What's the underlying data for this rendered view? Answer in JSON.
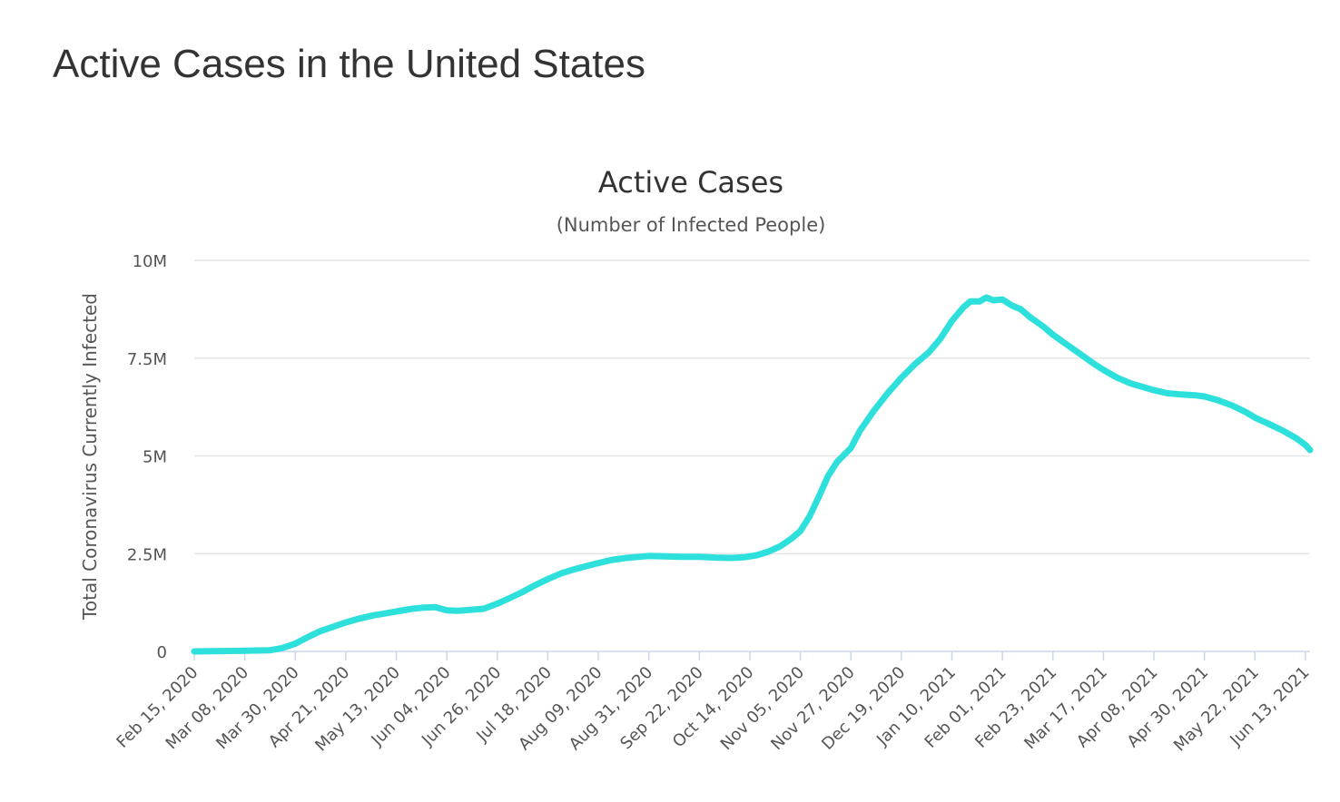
{
  "page": {
    "title": "Active Cases in the United States"
  },
  "colors": {
    "series": "#2ee0dc",
    "grid": "#e6e6e6",
    "axis": "#ccd6eb",
    "text": "#333333",
    "muted": "#555555"
  },
  "chart_data": {
    "type": "line",
    "title": "Active Cases",
    "subtitle": "(Number of Infected People)",
    "xlabel": "",
    "ylabel": "Total Coronavirus Currently Infected",
    "ylim": [
      0,
      10000000
    ],
    "yticks": [
      {
        "value": 0,
        "label": "0"
      },
      {
        "value": 2500000,
        "label": "2.5M"
      },
      {
        "value": 5000000,
        "label": "5M"
      },
      {
        "value": 7500000,
        "label": "7.5M"
      },
      {
        "value": 10000000,
        "label": "10M"
      }
    ],
    "x_range_days": [
      0,
      486
    ],
    "xticks": [
      {
        "day": 0,
        "label": "Feb 15, 2020"
      },
      {
        "day": 22,
        "label": "Mar 08, 2020"
      },
      {
        "day": 44,
        "label": "Mar 30, 2020"
      },
      {
        "day": 66,
        "label": "Apr 21, 2020"
      },
      {
        "day": 88,
        "label": "May 13, 2020"
      },
      {
        "day": 110,
        "label": "Jun 04, 2020"
      },
      {
        "day": 132,
        "label": "Jun 26, 2020"
      },
      {
        "day": 154,
        "label": "Jul 18, 2020"
      },
      {
        "day": 176,
        "label": "Aug 09, 2020"
      },
      {
        "day": 198,
        "label": "Aug 31, 2020"
      },
      {
        "day": 220,
        "label": "Sep 22, 2020"
      },
      {
        "day": 242,
        "label": "Oct 14, 2020"
      },
      {
        "day": 264,
        "label": "Nov 05, 2020"
      },
      {
        "day": 286,
        "label": "Nov 27, 2020"
      },
      {
        "day": 308,
        "label": "Dec 19, 2020"
      },
      {
        "day": 330,
        "label": "Jan 10, 2021"
      },
      {
        "day": 352,
        "label": "Feb 01, 2021"
      },
      {
        "day": 374,
        "label": "Feb 23, 2021"
      },
      {
        "day": 396,
        "label": "Mar 17, 2021"
      },
      {
        "day": 418,
        "label": "Apr 08, 2021"
      },
      {
        "day": 440,
        "label": "Apr 30, 2021"
      },
      {
        "day": 462,
        "label": "May 22, 2021"
      },
      {
        "day": 484,
        "label": "Jun 13, 2021"
      }
    ],
    "series": [
      {
        "name": "Currently Infected",
        "points": [
          [
            0,
            15
          ],
          [
            20,
            15000
          ],
          [
            33,
            30000
          ],
          [
            38,
            80000
          ],
          [
            44,
            200000
          ],
          [
            50,
            380000
          ],
          [
            55,
            520000
          ],
          [
            60,
            620000
          ],
          [
            66,
            740000
          ],
          [
            72,
            840000
          ],
          [
            78,
            920000
          ],
          [
            84,
            980000
          ],
          [
            88,
            1020000
          ],
          [
            95,
            1090000
          ],
          [
            100,
            1120000
          ],
          [
            105,
            1130000
          ],
          [
            110,
            1050000
          ],
          [
            115,
            1040000
          ],
          [
            120,
            1060000
          ],
          [
            126,
            1090000
          ],
          [
            132,
            1220000
          ],
          [
            138,
            1380000
          ],
          [
            143,
            1520000
          ],
          [
            148,
            1680000
          ],
          [
            154,
            1850000
          ],
          [
            160,
            2000000
          ],
          [
            165,
            2090000
          ],
          [
            170,
            2170000
          ],
          [
            176,
            2260000
          ],
          [
            182,
            2340000
          ],
          [
            188,
            2390000
          ],
          [
            194,
            2420000
          ],
          [
            198,
            2440000
          ],
          [
            205,
            2430000
          ],
          [
            212,
            2420000
          ],
          [
            220,
            2420000
          ],
          [
            227,
            2400000
          ],
          [
            234,
            2390000
          ],
          [
            240,
            2410000
          ],
          [
            245,
            2460000
          ],
          [
            250,
            2550000
          ],
          [
            255,
            2680000
          ],
          [
            260,
            2880000
          ],
          [
            264,
            3080000
          ],
          [
            268,
            3450000
          ],
          [
            272,
            3950000
          ],
          [
            276,
            4480000
          ],
          [
            280,
            4850000
          ],
          [
            286,
            5200000
          ],
          [
            290,
            5650000
          ],
          [
            296,
            6150000
          ],
          [
            302,
            6600000
          ],
          [
            308,
            7000000
          ],
          [
            314,
            7350000
          ],
          [
            320,
            7650000
          ],
          [
            325,
            8000000
          ],
          [
            330,
            8450000
          ],
          [
            335,
            8800000
          ],
          [
            338,
            8950000
          ],
          [
            342,
            8950000
          ],
          [
            345,
            9050000
          ],
          [
            348,
            8980000
          ],
          [
            352,
            9000000
          ],
          [
            356,
            8850000
          ],
          [
            360,
            8750000
          ],
          [
            364,
            8550000
          ],
          [
            370,
            8300000
          ],
          [
            374,
            8100000
          ],
          [
            380,
            7850000
          ],
          [
            386,
            7600000
          ],
          [
            392,
            7350000
          ],
          [
            396,
            7200000
          ],
          [
            402,
            7000000
          ],
          [
            408,
            6850000
          ],
          [
            414,
            6750000
          ],
          [
            418,
            6680000
          ],
          [
            424,
            6600000
          ],
          [
            430,
            6570000
          ],
          [
            436,
            6550000
          ],
          [
            440,
            6520000
          ],
          [
            446,
            6420000
          ],
          [
            452,
            6290000
          ],
          [
            458,
            6120000
          ],
          [
            462,
            5980000
          ],
          [
            468,
            5820000
          ],
          [
            474,
            5650000
          ],
          [
            480,
            5450000
          ],
          [
            484,
            5280000
          ],
          [
            486,
            5150000
          ]
        ]
      }
    ]
  }
}
